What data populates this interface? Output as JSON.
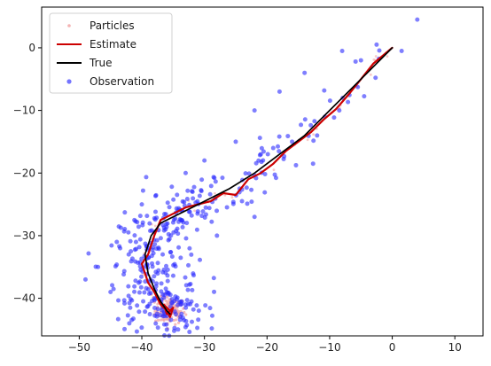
{
  "chart_data": {
    "type": "scatter",
    "title": "",
    "xlabel": "",
    "ylabel": "",
    "xlim": [
      -56,
      14.5
    ],
    "ylim": [
      -46,
      6.5
    ],
    "xticks": [
      -50,
      -40,
      -30,
      -20,
      -10,
      0,
      10
    ],
    "yticks": [
      0,
      -10,
      -20,
      -30,
      -40
    ],
    "xtick_labels": [
      "−50",
      "−40",
      "−30",
      "−20",
      "−10",
      "0",
      "10"
    ],
    "ytick_labels": [
      "0",
      "−10",
      "−20",
      "−30",
      "−40"
    ],
    "grid": false,
    "legend_position": "top-left",
    "legend": [
      {
        "label": "Particles",
        "kind": "marker",
        "color": "#f2a6a6"
      },
      {
        "label": "Estimate",
        "kind": "line",
        "color": "#cc0000"
      },
      {
        "label": "True",
        "kind": "line",
        "color": "#000000"
      },
      {
        "label": "Observation",
        "kind": "marker",
        "color": "#2a2aff"
      }
    ],
    "series": [
      {
        "name": "True",
        "color": "#000000",
        "x": [
          0,
          -5,
          -10,
          -14,
          -18,
          -22,
          -26,
          -30,
          -33,
          -35,
          -37,
          -38.5,
          -39.5,
          -39,
          -38,
          -37,
          -36,
          -35.5
        ],
        "y": [
          0,
          -5,
          -10,
          -14,
          -17,
          -20,
          -22.5,
          -24.5,
          -26,
          -27,
          -28,
          -30,
          -33,
          -36,
          -38.5,
          -40.5,
          -42,
          -42.5
        ]
      },
      {
        "name": "Estimate",
        "color": "#cc0000",
        "x": [
          0,
          -3,
          -5,
          -7,
          -9,
          -11,
          -13,
          -15,
          -17,
          -19,
          -21,
          -23,
          -25,
          -27,
          -29,
          -31,
          -33,
          -35,
          -37,
          -38,
          -39,
          -40,
          -39.5,
          -39,
          -38,
          -37,
          -36,
          -35.5,
          -35,
          -36,
          -36.5,
          -35.5
        ],
        "y": [
          0,
          -2.5,
          -5,
          -7.5,
          -9.8,
          -11.5,
          -13.5,
          -15,
          -16.5,
          -18.5,
          -20,
          -21,
          -23.5,
          -23.2,
          -24.5,
          -25,
          -25.5,
          -26.5,
          -27.5,
          -30,
          -33,
          -34.5,
          -36,
          -37.5,
          -39,
          -41,
          -42,
          -43,
          -41.5,
          -42.5,
          -41,
          -42
        ]
      }
    ],
    "observations": {
      "name": "Observation",
      "color": "#2a2aff",
      "count": 400,
      "points": [
        [
          4,
          4.5
        ],
        [
          1.5,
          -0.5
        ],
        [
          -2.5,
          0.5
        ],
        [
          -5,
          -2
        ],
        [
          -8,
          -0.5
        ],
        [
          -14,
          -4
        ],
        [
          -18,
          -7
        ],
        [
          -22,
          -10
        ],
        [
          -25,
          -15
        ],
        [
          -30,
          -18
        ],
        [
          -33,
          -20
        ],
        [
          -40,
          -25
        ],
        [
          -44,
          -31
        ],
        [
          -47,
          -35
        ],
        [
          -49,
          -37
        ],
        [
          -45,
          -39
        ],
        [
          -42,
          -44
        ],
        [
          -38,
          -40
        ],
        [
          -36,
          -45
        ],
        [
          -33,
          -41
        ],
        [
          -28,
          -30
        ],
        [
          -22,
          -27
        ],
        [
          -21,
          -17
        ],
        [
          -16,
          -15
        ],
        [
          -12,
          -14
        ]
      ]
    },
    "particles": {
      "name": "Particles",
      "color": "#f2a6a6",
      "cluster_center": [
        -35.5,
        -42
      ],
      "cluster_spread": [
        1.2,
        1.2
      ]
    }
  }
}
